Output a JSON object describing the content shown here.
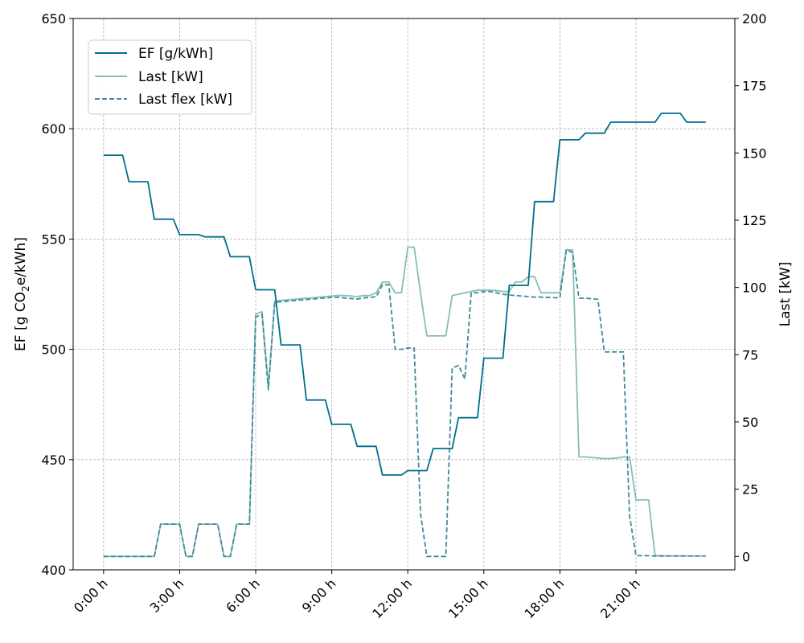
{
  "chart_data": {
    "type": "line",
    "x_tick_labels": [
      "0:00 h",
      "3:00 h",
      "6:00 h",
      "9:00 h",
      "12:00 h",
      "15:00 h",
      "18:00 h",
      "21:00 h"
    ],
    "x_ticks_hours": [
      0,
      3,
      6,
      9,
      12,
      15,
      18,
      21
    ],
    "xlim": [
      -1.2,
      24.9
    ],
    "left_axis": {
      "label_prefix": "EF [g CO",
      "label_sub": "2",
      "label_suffix": "e/kWh]",
      "ylim": [
        400,
        650
      ],
      "ticks": [
        400,
        450,
        500,
        550,
        600,
        650
      ]
    },
    "right_axis": {
      "label": "Last [kW]",
      "ylim": [
        -5,
        200
      ],
      "ticks": [
        0,
        25,
        50,
        75,
        100,
        125,
        150,
        175,
        200
      ]
    },
    "grid": true,
    "legend": {
      "placement": "top-left",
      "entries": [
        "EF [g/kWh]",
        "Last [kW]",
        "Last flex [kW]"
      ]
    },
    "colors": {
      "ef": "#006e8f",
      "last": "#86bfb2",
      "last_flex": "#3e8a9a"
    },
    "series": [
      {
        "name": "EF [g/kWh]",
        "axis": "left",
        "style": "solid",
        "x": [
          0,
          0.75,
          1,
          1.75,
          2,
          2.75,
          3,
          3.75,
          4,
          4.75,
          5,
          5.75,
          6,
          6.75,
          7,
          7.75,
          8,
          8.75,
          9,
          9.75,
          10,
          10.75,
          11,
          11.75,
          12,
          12.75,
          13,
          13.75,
          14,
          14.75,
          15,
          15.75,
          16,
          16.75,
          17,
          17.75,
          18,
          18.75,
          19,
          19.75,
          20,
          20.75,
          21,
          21.75,
          22,
          22.75,
          23,
          23.75
        ],
        "values": [
          588,
          588,
          576,
          576,
          559,
          559,
          552,
          552,
          551,
          551,
          542,
          542,
          527,
          527,
          502,
          502,
          477,
          477,
          466,
          466,
          456,
          456,
          443,
          443,
          445,
          445,
          455,
          455,
          469,
          469,
          496,
          496,
          529,
          529,
          567,
          567,
          595,
          595,
          598,
          598,
          603,
          603,
          603,
          603,
          607,
          607,
          603,
          603
        ]
      },
      {
        "name": "Last [kW]",
        "axis": "right",
        "style": "solid",
        "x": [
          0,
          0.25,
          0.5,
          0.75,
          1,
          1.25,
          1.5,
          1.75,
          2,
          2.25,
          2.5,
          2.75,
          3,
          3.25,
          3.5,
          3.75,
          4,
          4.25,
          4.5,
          4.75,
          5,
          5.25,
          5.5,
          5.75,
          6,
          6.25,
          6.5,
          6.75,
          7,
          7.25,
          7.5,
          7.75,
          8,
          8.25,
          8.5,
          8.75,
          9,
          9.25,
          9.5,
          9.75,
          10,
          10.25,
          10.5,
          10.75,
          11,
          11.25,
          11.5,
          11.75,
          12,
          12.25,
          12.5,
          12.75,
          13,
          13.25,
          13.5,
          13.75,
          14,
          14.25,
          14.5,
          14.75,
          15,
          15.25,
          15.5,
          15.75,
          16,
          16.25,
          16.5,
          16.75,
          17,
          17.25,
          17.5,
          17.75,
          18,
          18.25,
          18.5,
          18.75,
          19,
          19.25,
          19.5,
          19.75,
          20,
          20.25,
          20.5,
          20.75,
          21,
          21.25,
          21.5,
          21.75,
          22,
          22.25,
          22.5,
          22.75,
          23,
          23.25,
          23.5,
          23.75
        ],
        "values": [
          0,
          0,
          0,
          0,
          0,
          0,
          0,
          0,
          0,
          12,
          12,
          12,
          12,
          0,
          0,
          12,
          12,
          12,
          12,
          0,
          0,
          12,
          12,
          12,
          90,
          91,
          63,
          95,
          95.2,
          95.4,
          95.6,
          95.8,
          96,
          96.2,
          96.4,
          96.6,
          96.8,
          97,
          97,
          96.8,
          96.6,
          97,
          97,
          98,
          102,
          102,
          98,
          98,
          115,
          115,
          98,
          82,
          82,
          82,
          82,
          97,
          97.5,
          98,
          98.5,
          99,
          99,
          99,
          98.8,
          98.5,
          98.5,
          102,
          102,
          104,
          104,
          98,
          98,
          98,
          98,
          114,
          114,
          37,
          37,
          36.8,
          36.6,
          36.4,
          36.4,
          36.6,
          37,
          37,
          21,
          21,
          21,
          0.3,
          0.3,
          0.2,
          0.2,
          0.2,
          0.2,
          0.2,
          0.2,
          0.2
        ]
      },
      {
        "name": "Last flex [kW]",
        "axis": "right",
        "style": "dashed",
        "x": [
          0,
          0.25,
          0.5,
          0.75,
          1,
          1.25,
          1.5,
          1.75,
          2,
          2.25,
          2.5,
          2.75,
          3,
          3.25,
          3.5,
          3.75,
          4,
          4.25,
          4.5,
          4.75,
          5,
          5.25,
          5.5,
          5.75,
          6,
          6.25,
          6.5,
          6.75,
          7,
          7.25,
          7.5,
          7.75,
          8,
          8.25,
          8.5,
          8.75,
          9,
          9.25,
          9.5,
          9.75,
          10,
          10.25,
          10.5,
          10.75,
          11,
          11.25,
          11.5,
          11.75,
          12,
          12.25,
          12.5,
          12.75,
          13,
          13.25,
          13.5,
          13.75,
          14,
          14.25,
          14.5,
          14.75,
          15,
          15.25,
          15.5,
          15.75,
          16,
          16.25,
          16.5,
          16.75,
          17,
          17.25,
          17.5,
          17.75,
          18,
          18.25,
          18.5,
          18.75,
          19,
          19.25,
          19.5,
          19.75,
          20,
          20.25,
          20.5,
          20.75,
          21,
          21.25,
          21.5,
          21.75,
          22,
          22.25,
          22.5,
          22.75,
          23,
          23.25,
          23.5,
          23.75
        ],
        "values": [
          0,
          0,
          0,
          0,
          0,
          0,
          0,
          0,
          0,
          12,
          12,
          12,
          12,
          0,
          0,
          12,
          12,
          12,
          12,
          0,
          0,
          12,
          12,
          12,
          89,
          90,
          62,
          94.5,
          94.7,
          94.9,
          95.1,
          95.3,
          95.5,
          95.7,
          95.9,
          96.1,
          96.3,
          96.3,
          96.1,
          95.9,
          95.7,
          96.1,
          96.3,
          96.5,
          101,
          101,
          77,
          77,
          77.5,
          77.5,
          16,
          0,
          0,
          0,
          0,
          70,
          71,
          66,
          98,
          98,
          98.5,
          98.5,
          98,
          97.5,
          97.2,
          97,
          96.8,
          96.6,
          96.4,
          96.4,
          96.3,
          96.2,
          96.2,
          114,
          113,
          96,
          96,
          95.8,
          95.6,
          76,
          76,
          76,
          76,
          15,
          0.3,
          0.3,
          0.3,
          0.1,
          0.1,
          0.1,
          0.1,
          0.1,
          0.1,
          0.1,
          0.1,
          0.1
        ]
      }
    ]
  }
}
